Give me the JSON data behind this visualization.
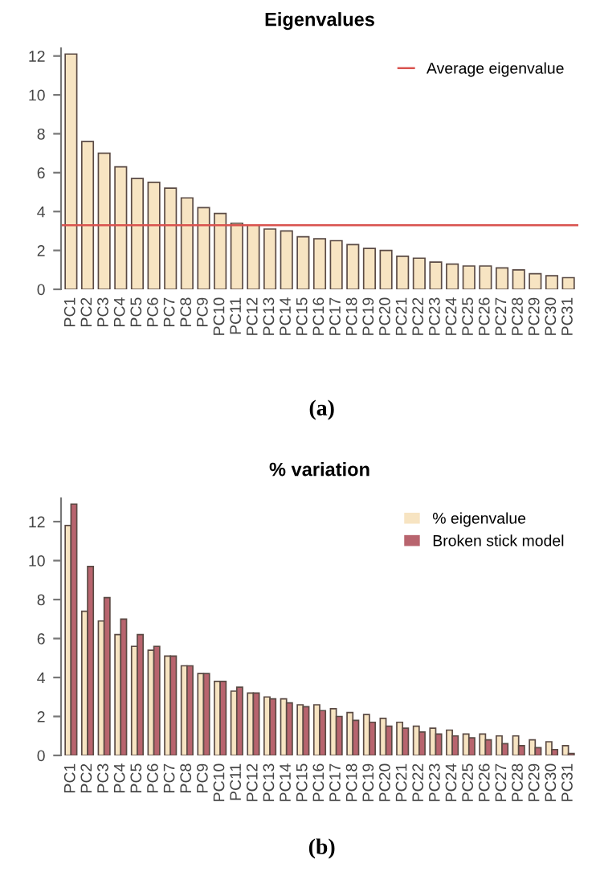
{
  "chart_data": [
    {
      "type": "bar",
      "title": "Eigenvalues",
      "annotations": [
        "(a)"
      ],
      "categories": [
        "PC1",
        "PC2",
        "PC3",
        "PC4",
        "PC5",
        "PC6",
        "PC7",
        "PC8",
        "PC9",
        "PC10",
        "PC11",
        "PC12",
        "PC13",
        "PC14",
        "PC15",
        "PC16",
        "PC17",
        "PC18",
        "PC19",
        "PC20",
        "PC21",
        "PC22",
        "PC23",
        "PC24",
        "PC25",
        "PC26",
        "PC27",
        "PC28",
        "PC29",
        "PC30",
        "PC31"
      ],
      "series": [
        {
          "color": "#f7e4c2",
          "values": [
            12.1,
            7.6,
            7.0,
            6.3,
            5.7,
            5.5,
            5.2,
            4.7,
            4.2,
            3.9,
            3.4,
            3.3,
            3.1,
            3.0,
            2.7,
            2.6,
            2.5,
            2.3,
            2.1,
            2.0,
            1.7,
            1.6,
            1.4,
            1.3,
            1.2,
            1.2,
            1.1,
            1.0,
            0.8,
            0.7,
            0.6
          ]
        }
      ],
      "ref_lines": [
        {
          "axis": "y",
          "value": 3.3,
          "label": "Average eigenvalue",
          "color": "#d9534f"
        }
      ],
      "ylim": [
        0,
        12.4
      ],
      "yticks": [
        0,
        2,
        4,
        6,
        8,
        10,
        12
      ],
      "legend": "top right",
      "grid": false
    },
    {
      "type": "bar",
      "title": "% variation",
      "annotations": [
        "(b)"
      ],
      "categories": [
        "PC1",
        "PC2",
        "PC3",
        "PC4",
        "PC5",
        "PC6",
        "PC7",
        "PC8",
        "PC9",
        "PC10",
        "PC11",
        "PC12",
        "PC13",
        "PC14",
        "PC15",
        "PC16",
        "PC17",
        "PC18",
        "PC19",
        "PC20",
        "PC21",
        "PC22",
        "PC23",
        "PC24",
        "PC25",
        "PC26",
        "PC27",
        "PC28",
        "PC29",
        "PC30",
        "PC31"
      ],
      "series": [
        {
          "name": "% eigenvalue",
          "color": "#f7e4c2",
          "values": [
            11.8,
            7.4,
            6.9,
            6.2,
            5.6,
            5.4,
            5.1,
            4.6,
            4.2,
            3.8,
            3.3,
            3.2,
            3.0,
            2.9,
            2.6,
            2.6,
            2.4,
            2.2,
            2.1,
            1.9,
            1.7,
            1.5,
            1.4,
            1.3,
            1.1,
            1.1,
            1.0,
            1.0,
            0.8,
            0.7,
            0.5
          ]
        },
        {
          "name": "Broken stick model",
          "color": "#b8646e",
          "values": [
            12.9,
            9.7,
            8.1,
            7.0,
            6.2,
            5.6,
            5.1,
            4.6,
            4.2,
            3.8,
            3.5,
            3.2,
            2.9,
            2.7,
            2.5,
            2.3,
            2.0,
            1.8,
            1.7,
            1.5,
            1.4,
            1.2,
            1.1,
            1.0,
            0.9,
            0.8,
            0.6,
            0.5,
            0.4,
            0.3,
            0.1
          ]
        }
      ],
      "ylim": [
        0,
        13.2
      ],
      "yticks": [
        0,
        2,
        4,
        6,
        8,
        10,
        12
      ],
      "legend": "top right",
      "grid": false
    }
  ]
}
